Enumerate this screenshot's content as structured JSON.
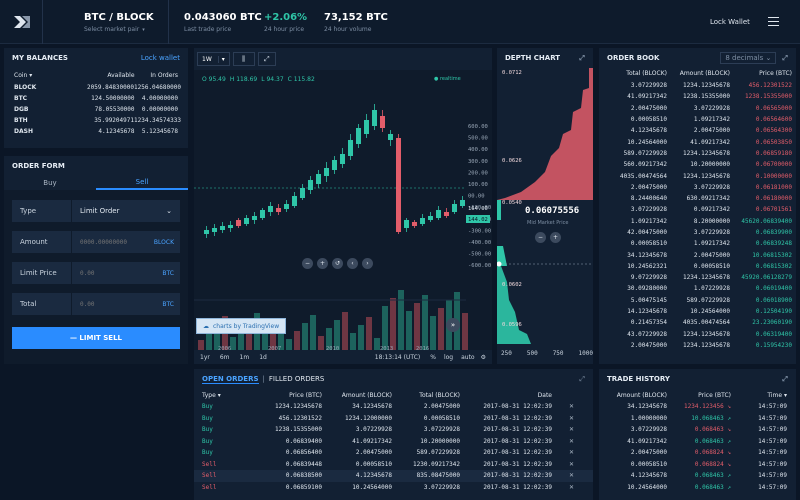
{
  "header": {
    "pair": "BTC / BLOCK",
    "select": "Select market pair",
    "price": "0.043060 BTC",
    "price_label": "Last trade price",
    "change": "+2.06%",
    "change_label": "24 hour price",
    "volume": "73,152 BTC",
    "volume_label": "24 hour volume",
    "lock": "Lock Wallet"
  },
  "balances": {
    "title": "MY BALANCES",
    "lock": "Lock wallet",
    "cols": [
      "Coin",
      "Available",
      "In Orders"
    ],
    "rows": [
      [
        "BLOCK",
        "2059.84830000",
        "1256.04680000"
      ],
      [
        "BTC",
        "124.50000000",
        "4.00000000"
      ],
      [
        "DGB",
        "78.05530000",
        "0.00000000"
      ],
      [
        "BTH",
        "35.99204971",
        "1234.34574333"
      ],
      [
        "DASH",
        "4.12345678",
        "5.12345678"
      ]
    ]
  },
  "order_form": {
    "title": "ORDER FORM",
    "buy": "Buy",
    "sell": "Sell",
    "type_label": "Type",
    "type_value": "Limit Order",
    "amount_label": "Amount",
    "amount_ph": "0000.00000000",
    "amount_unit": "BLOCK",
    "limit_label": "Limit Price",
    "limit_ph": "0.00",
    "limit_unit": "BTC",
    "total_label": "Total",
    "total_ph": "0.00",
    "total_unit": "BTC",
    "submit": "LIMIT SELL"
  },
  "chart": {
    "interval": "1W",
    "ohlc": {
      "o": "O 95.49",
      "h": "H 118.69",
      "l": "L 94.37",
      "c": "C 115.82"
    },
    "realtime": "realtime",
    "yticks": [
      "600.00",
      "500.00",
      "400.00",
      "300.00",
      "200.00",
      "100.00",
      "00.00",
      "-100.00",
      "-200.00",
      "-300.00",
      "-400.00",
      "-500.00",
      "-600.00"
    ],
    "price_tag1": "164.00",
    "price_tag2": "144.02",
    "xticks": [
      "2006",
      "2007",
      "2010",
      "2013",
      "2016"
    ],
    "ranges": [
      "1yr",
      "6m",
      "1m",
      "1d"
    ],
    "time": "18:13:14 (UTC)",
    "pct": "%",
    "log": "log",
    "auto": "auto",
    "brand": "charts by TradingView"
  },
  "depth": {
    "title": "DEPTH CHART",
    "ticks": [
      "0.0712",
      "0.0626",
      "0.0540",
      "0.0602",
      "0.0596"
    ],
    "mid": "0.06075556",
    "mid_label": "Mid Market Price",
    "xticks": [
      "250",
      "500",
      "750",
      "1000"
    ]
  },
  "orderbook": {
    "title": "ORDER BOOK",
    "decimals": "8 decimals",
    "cols": [
      "Total (BLOCK)",
      "Amount (BLOCK)",
      "Price (BTC)"
    ],
    "rows": [
      [
        "3.07229928",
        "1234.12345678",
        "456.12301522",
        "r"
      ],
      [
        "41.09217342",
        "1238.15355000",
        "1238.15355000",
        "r"
      ],
      [
        "2.00475000",
        "3.07229928",
        "0.06565000",
        "r"
      ],
      [
        "0.00058510",
        "1.09217342",
        "0.06564600",
        "r"
      ],
      [
        "4.12345678",
        "2.00475000",
        "0.06564300",
        "r"
      ],
      [
        "10.24564000",
        "41.09217342",
        "0.06503850",
        "r"
      ],
      [
        "589.07229928",
        "1234.12345678",
        "0.06859180",
        "r"
      ],
      [
        "560.09217342",
        "10.20000000",
        "0.06700000",
        "r"
      ],
      [
        "4035.00474564",
        "1234.12345678",
        "0.10000000",
        "r"
      ],
      [
        "2.00475000",
        "3.07229928",
        "0.06181000",
        "r"
      ],
      [
        "8.24400640",
        "630.09217342",
        "0.06180000",
        "r"
      ],
      [
        "3.07229928",
        "0.09217342",
        "0.06701561",
        "r"
      ],
      [
        "1.09217342",
        "8.20000000",
        "45620.06839400",
        "g"
      ],
      [
        "42.00475000",
        "3.07229928",
        "0.06839900",
        "g"
      ],
      [
        "0.00058510",
        "1.09217342",
        "0.06839248",
        "g"
      ],
      [
        "34.12345678",
        "2.00475000",
        "10.06815302",
        "g"
      ],
      [
        "10.24562321",
        "0.00058510",
        "0.06815302",
        "g"
      ],
      [
        "9.07229928",
        "1234.12345678",
        "45920.06128279",
        "g"
      ],
      [
        "30.09280000",
        "1.07229928",
        "0.06019400",
        "g"
      ],
      [
        "5.00475145",
        "589.07229928",
        "0.06018900",
        "g"
      ],
      [
        "14.12345678",
        "10.24564000",
        "0.12504190",
        "g"
      ],
      [
        "0.21457354",
        "4035.00474564",
        "23.23060190",
        "g"
      ],
      [
        "43.07229928",
        "1234.12345678",
        "0.06319400",
        "g"
      ],
      [
        "2.00475000",
        "1234.12345678",
        "0.15954230",
        "g"
      ]
    ]
  },
  "open_orders": {
    "tab1": "OPEN ORDERS",
    "tab2": "FILLED ORDERS",
    "cols": [
      "Type",
      "Price (BTC)",
      "Amount (BLOCK)",
      "Total (BLOCK)",
      "Date"
    ],
    "rows": [
      [
        "Buy",
        "1234.12345678",
        "34.12345678",
        "2.00475000",
        "2017-08-31 12:02:39"
      ],
      [
        "Buy",
        "456.12301522",
        "1234.12000000",
        "0.00058510",
        "2017-08-31 12:02:39"
      ],
      [
        "Buy",
        "1238.15355000",
        "3.07229928",
        "3.07229928",
        "2017-08-31 12:02:39"
      ],
      [
        "Buy",
        "0.06839400",
        "41.09217342",
        "10.20000000",
        "2017-08-31 12:02:39"
      ],
      [
        "Buy",
        "0.06856400",
        "2.00475000",
        "589.07229928",
        "2017-08-31 12:02:39"
      ],
      [
        "Sell",
        "0.06839448",
        "0.00058510",
        "1230.09217342",
        "2017-08-31 12:02:39"
      ],
      [
        "Sell",
        "0.06838500",
        "4.12345678",
        "835.08475000",
        "2017-08-31 12:02:39"
      ],
      [
        "Sell",
        "0.06859100",
        "10.24564000",
        "3.07229928",
        "2017-08-31 12:02:39"
      ]
    ]
  },
  "trade_history": {
    "title": "TRADE HISTORY",
    "cols": [
      "Amount (BLOCK)",
      "Price (BTC)",
      "Time"
    ],
    "rows": [
      [
        "34.12345678",
        "1234.123456",
        "14:57:09",
        "r"
      ],
      [
        "1.00000000",
        "10.068463",
        "14:57:09",
        "g"
      ],
      [
        "3.07229928",
        "0.068463",
        "14:57:09",
        "r"
      ],
      [
        "41.09217342",
        "0.068463",
        "14:57:09",
        "g"
      ],
      [
        "2.00475000",
        "0.068824",
        "14:57:09",
        "r"
      ],
      [
        "0.00058510",
        "0.068824",
        "14:57:09",
        "r"
      ],
      [
        "4.12345678",
        "0.068463",
        "14:57:09",
        "g"
      ],
      [
        "10.24564000",
        "0.068463",
        "14:57:09",
        "g"
      ]
    ]
  },
  "colors": {
    "green": "#2fc6a8",
    "red": "#e35d6a",
    "accent": "#2a8cff"
  }
}
